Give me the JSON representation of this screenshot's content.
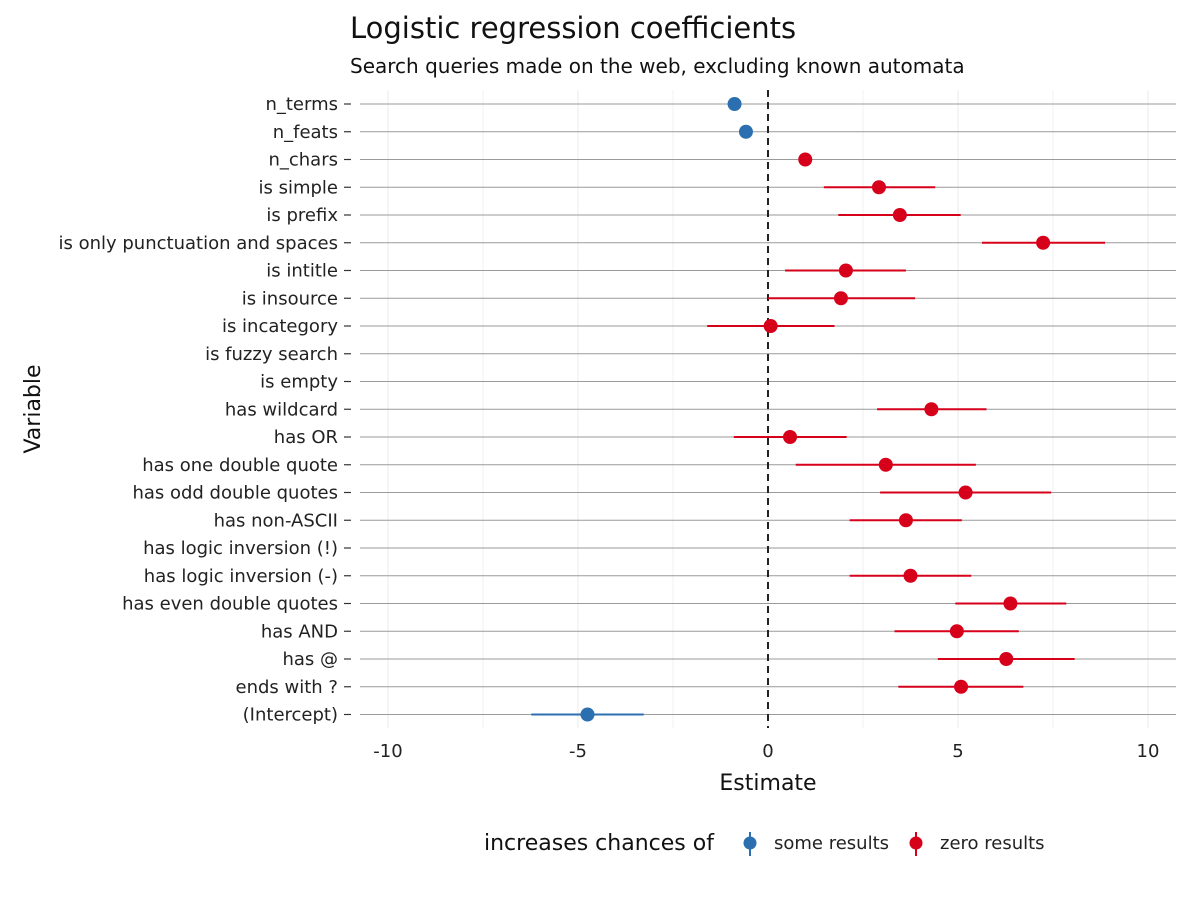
{
  "chart_data": {
    "type": "scatter",
    "title": "Logistic regression coefficients",
    "subtitle": "Search queries made on the web, excluding known automata",
    "xlabel": "Estimate",
    "ylabel": "Variable",
    "xlim": [
      -10.5,
      10.5
    ],
    "xticks": [
      -10,
      -5,
      0,
      5,
      10
    ],
    "xtick_labels": [
      "-10",
      "-5",
      "0",
      "5",
      "10"
    ],
    "reference_line": 0,
    "grid": true,
    "legend": {
      "title": "increases chances of",
      "position": "bottom",
      "entries": [
        {
          "label": "some results",
          "color": "#2c6fb0"
        },
        {
          "label": "zero results",
          "color": "#d7001b"
        }
      ]
    },
    "categories": [
      "n_terms",
      "n_feats",
      "n_chars",
      "is simple",
      "is prefix",
      "is only punctuation and spaces",
      "is intitle",
      "is insource",
      "is incategory",
      "is fuzzy search",
      "is empty",
      "has wildcard",
      "has OR",
      "has one double quote",
      "has odd double quotes",
      "has non-ASCII",
      "has logic inversion (!)",
      "has logic inversion (-)",
      "has even double quotes",
      "has AND",
      "has @",
      "ends with ?",
      "(Intercept)"
    ],
    "points": [
      {
        "variable": "n_terms",
        "estimate": -0.88,
        "lower": null,
        "upper": null,
        "group": "some results"
      },
      {
        "variable": "n_feats",
        "estimate": -0.58,
        "lower": null,
        "upper": null,
        "group": "some results"
      },
      {
        "variable": "n_chars",
        "estimate": 0.98,
        "lower": null,
        "upper": null,
        "group": "zero results"
      },
      {
        "variable": "is simple",
        "estimate": 2.92,
        "lower": 1.47,
        "upper": 4.4,
        "group": "zero results"
      },
      {
        "variable": "is prefix",
        "estimate": 3.47,
        "lower": 1.85,
        "upper": 5.07,
        "group": "zero results"
      },
      {
        "variable": "is only punctuation and spaces",
        "estimate": 7.24,
        "lower": 5.63,
        "upper": 8.87,
        "group": "zero results"
      },
      {
        "variable": "is intitle",
        "estimate": 2.05,
        "lower": 0.45,
        "upper": 3.63,
        "group": "zero results"
      },
      {
        "variable": "is insource",
        "estimate": 1.92,
        "lower": 0.0,
        "upper": 3.87,
        "group": "zero results"
      },
      {
        "variable": "is incategory",
        "estimate": 0.07,
        "lower": -1.6,
        "upper": 1.75,
        "group": "zero results"
      },
      {
        "variable": "is fuzzy search",
        "estimate": null,
        "lower": null,
        "upper": null,
        "group": "zero results"
      },
      {
        "variable": "is empty",
        "estimate": null,
        "lower": null,
        "upper": null,
        "group": "zero results"
      },
      {
        "variable": "has wildcard",
        "estimate": 4.3,
        "lower": 2.87,
        "upper": 5.75,
        "group": "zero results"
      },
      {
        "variable": "has OR",
        "estimate": 0.58,
        "lower": -0.9,
        "upper": 2.07,
        "group": "zero results"
      },
      {
        "variable": "has one double quote",
        "estimate": 3.1,
        "lower": 0.73,
        "upper": 5.47,
        "group": "zero results"
      },
      {
        "variable": "has odd double quotes",
        "estimate": 5.2,
        "lower": 2.95,
        "upper": 7.45,
        "group": "zero results"
      },
      {
        "variable": "has non-ASCII",
        "estimate": 3.63,
        "lower": 2.15,
        "upper": 5.1,
        "group": "zero results"
      },
      {
        "variable": "has logic inversion (!)",
        "estimate": null,
        "lower": null,
        "upper": null,
        "group": "zero results"
      },
      {
        "variable": "has logic inversion (-)",
        "estimate": 3.75,
        "lower": 2.15,
        "upper": 5.35,
        "group": "zero results"
      },
      {
        "variable": "has even double quotes",
        "estimate": 6.38,
        "lower": 4.93,
        "upper": 7.85,
        "group": "zero results"
      },
      {
        "variable": "has AND",
        "estimate": 4.97,
        "lower": 3.33,
        "upper": 6.6,
        "group": "zero results"
      },
      {
        "variable": "has @",
        "estimate": 6.27,
        "lower": 4.47,
        "upper": 8.07,
        "group": "zero results"
      },
      {
        "variable": "ends with ?",
        "estimate": 5.08,
        "lower": 3.43,
        "upper": 6.72,
        "group": "zero results"
      },
      {
        "variable": "(Intercept)",
        "estimate": -4.75,
        "lower": -6.23,
        "upper": -3.27,
        "group": "some results"
      }
    ]
  }
}
